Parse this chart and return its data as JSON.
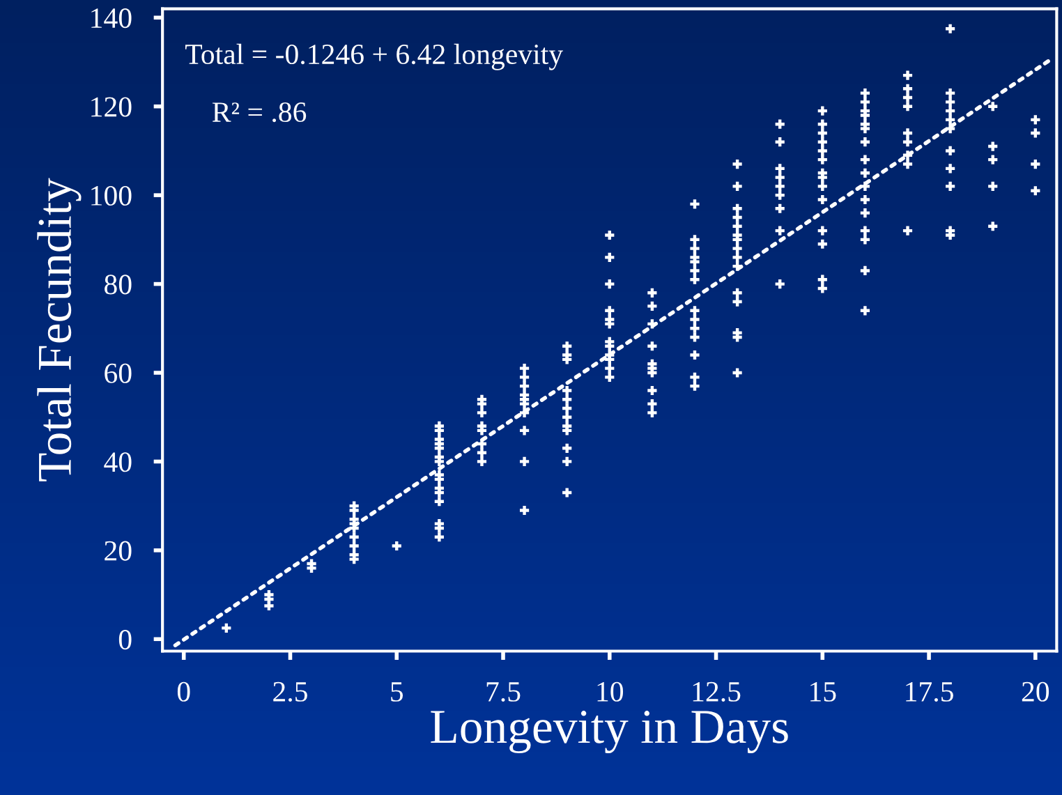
{
  "chart_data": {
    "type": "scatter",
    "xlabel": "Longevity in Days",
    "ylabel": "Total Fecundity",
    "xlim": [
      -0.5,
      20.5
    ],
    "ylim": [
      -2.7,
      142
    ],
    "xticks": [
      0,
      2.5,
      5,
      7.5,
      10,
      12.5,
      15,
      17.5,
      20
    ],
    "yticks": [
      0,
      20,
      40,
      60,
      80,
      100,
      120,
      140
    ],
    "grid": false,
    "marker": "cross",
    "annotations": [
      "Total = -0.1246 + 6.42 longevity",
      "R² = .86"
    ],
    "series": [
      {
        "color": "#ffffff",
        "x": [
          1,
          2,
          2,
          2,
          3,
          3,
          4,
          4,
          4,
          4,
          4,
          4,
          4,
          4,
          4,
          5,
          6,
          6,
          6,
          6,
          6,
          6,
          6,
          6,
          6,
          6,
          6,
          6,
          6,
          6,
          6,
          7,
          7,
          7,
          7,
          7,
          7,
          7,
          7,
          8,
          8,
          8,
          8,
          8,
          8,
          8,
          8,
          8,
          8,
          9,
          9,
          9,
          9,
          9,
          9,
          9,
          9,
          9,
          9,
          9,
          9,
          10,
          10,
          10,
          10,
          10,
          10,
          10,
          10,
          10,
          10,
          10,
          10,
          11,
          11,
          11,
          11,
          11,
          11,
          11,
          11,
          11,
          11,
          12,
          12,
          12,
          12,
          12,
          12,
          12,
          12,
          12,
          12,
          12,
          12,
          12,
          12,
          13,
          13,
          13,
          13,
          13,
          13,
          13,
          13,
          13,
          13,
          13,
          13,
          13,
          13,
          13,
          14,
          14,
          14,
          14,
          14,
          14,
          14,
          14,
          14,
          15,
          15,
          15,
          15,
          15,
          15,
          15,
          15,
          15,
          15,
          15,
          15,
          15,
          15,
          16,
          16,
          16,
          16,
          16,
          16,
          16,
          16,
          16,
          16,
          16,
          16,
          16,
          16,
          16,
          16,
          17,
          17,
          17,
          17,
          17,
          17,
          17,
          17,
          17,
          18,
          18,
          18,
          18,
          18,
          18,
          18,
          18,
          18,
          18,
          18,
          19,
          19,
          19,
          19,
          19,
          20,
          20,
          20,
          20
        ],
        "values": [
          2.5,
          10,
          9,
          7.5,
          17,
          16,
          30,
          29,
          27,
          26,
          25,
          23,
          21,
          19,
          18,
          21,
          48,
          47,
          45,
          44,
          43,
          41,
          40,
          37,
          36,
          34,
          33,
          31,
          26,
          25,
          23,
          54,
          53,
          51,
          48,
          47,
          44,
          42,
          40,
          61,
          59,
          57,
          55,
          54,
          53,
          51,
          47,
          40,
          29,
          66,
          64,
          63,
          56,
          54,
          52,
          50,
          48,
          47,
          43,
          40,
          33,
          91,
          86,
          80,
          74,
          72,
          71,
          67,
          66,
          64,
          63,
          61,
          59,
          78,
          75,
          71,
          66,
          62,
          61,
          60,
          56,
          53,
          51,
          98,
          90,
          88,
          86,
          85,
          83,
          81,
          74,
          72,
          70,
          68,
          64,
          59,
          57,
          107,
          102,
          97,
          95,
          93,
          91,
          90,
          88,
          86,
          84,
          78,
          76,
          69,
          68,
          60,
          116,
          112,
          106,
          104,
          102,
          100,
          97,
          92,
          80,
          119,
          116,
          114,
          112,
          110,
          108,
          105,
          104,
          102,
          99,
          92,
          89,
          81,
          79,
          123,
          121,
          119,
          118,
          116,
          115,
          112,
          108,
          105,
          102,
          99,
          96,
          92,
          90,
          83,
          74,
          127,
          124,
          122,
          120,
          114,
          112,
          109,
          107,
          92,
          137.5,
          123,
          121,
          119,
          117,
          115,
          110,
          106,
          102,
          92,
          91,
          120,
          111,
          108,
          102,
          93,
          117,
          114,
          107,
          101
        ]
      },
      {
        "type": "line",
        "color": "#ffffff",
        "marker": "none",
        "line_style": "dotted",
        "x": [
          -0.2,
          20.35
        ],
        "values": [
          -1.4,
          130.5
        ]
      }
    ]
  }
}
